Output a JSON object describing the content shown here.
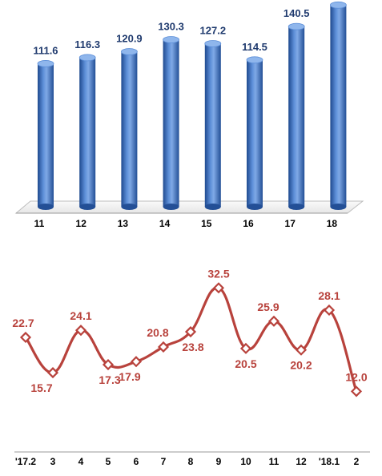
{
  "chart_data": [
    {
      "type": "bar",
      "style": "3d-cylinder",
      "categories": [
        "11",
        "12",
        "13",
        "14",
        "15",
        "16",
        "17",
        "18"
      ],
      "values": [
        111.6,
        116.3,
        120.9,
        130.3,
        127.2,
        114.5,
        140.5,
        157.3
      ],
      "title": "",
      "xlabel": "",
      "ylabel": "",
      "ylim": [
        0,
        160
      ],
      "grid": false,
      "legend": "none",
      "colors": {
        "bar": "#3b6fc0",
        "bar_light": "#7fa9e6",
        "bar_dark": "#1f4a8f",
        "label": "#1f3a6e",
        "floor": "#f2f2f2"
      }
    },
    {
      "type": "line",
      "style": "smoothed-with-diamond-markers",
      "categories": [
        "'17.2",
        "3",
        "4",
        "5",
        "6",
        "7",
        "8",
        "9",
        "10",
        "11",
        "12",
        "'18.1",
        "2"
      ],
      "values": [
        22.7,
        15.7,
        24.1,
        17.3,
        17.9,
        20.8,
        23.8,
        32.5,
        20.5,
        25.9,
        20.2,
        28.1,
        12.0
      ],
      "value_labels": [
        "22.7",
        "15.7",
        "24.1",
        "17.3",
        "17.9",
        "20.8",
        "23.8",
        "32.5",
        "20.5",
        "25.9",
        "20.2",
        "28.1",
        "12.0"
      ],
      "title": "",
      "xlabel": "",
      "ylabel": "",
      "ylim": [
        0,
        36
      ],
      "grid": false,
      "legend": "none",
      "colors": {
        "line": "#b8423c",
        "marker_fill": "#ffffff",
        "label": "#b8423c"
      }
    }
  ]
}
